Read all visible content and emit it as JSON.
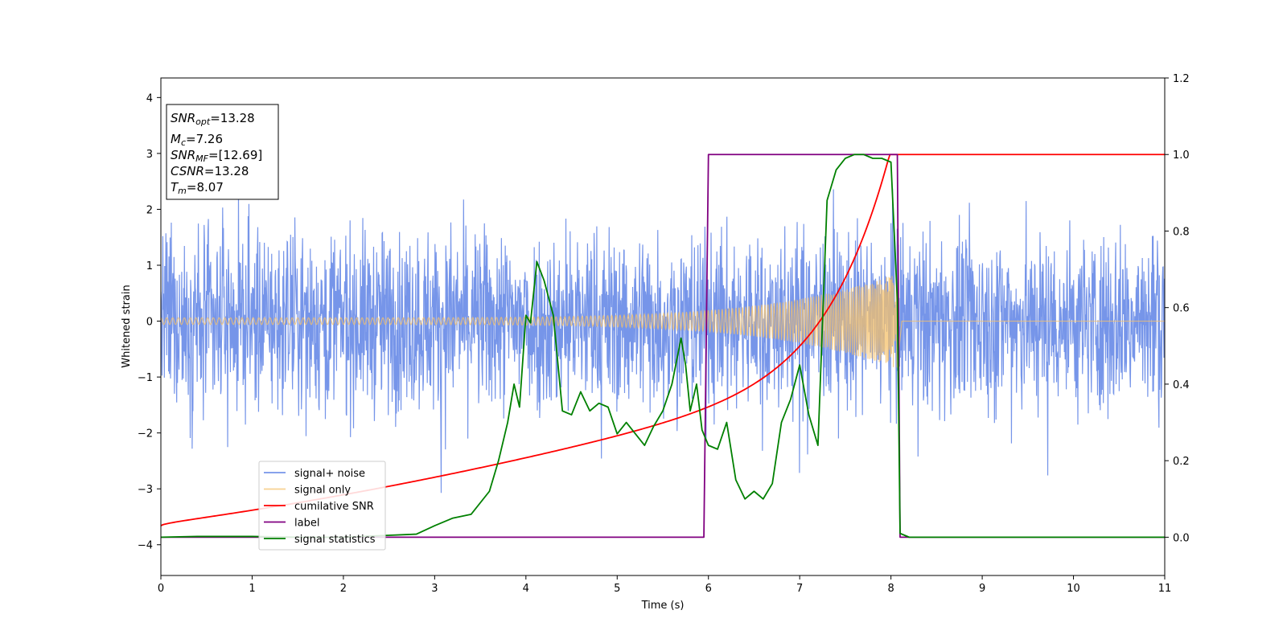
{
  "chart_data": {
    "type": "line",
    "xlabel": "Time (s)",
    "ylabel": "Whitened strain",
    "xlim": [
      0,
      11
    ],
    "ylim_left": [
      -4.55,
      4.35
    ],
    "ylim_right": [
      -0.1,
      1.2
    ],
    "xticks": [
      0,
      1,
      2,
      3,
      4,
      5,
      6,
      7,
      8,
      9,
      10,
      11
    ],
    "yticks_left": [
      -4,
      -3,
      -2,
      -1,
      0,
      1,
      2,
      3,
      4
    ],
    "yticks_right": [
      "0.0",
      "0.2",
      "0.4",
      "0.6",
      "0.8",
      "1.0",
      "1.2"
    ],
    "grid": false,
    "legend_position": "lower-left",
    "colors": {
      "signal_noise": "#6f8fe8",
      "signal_only": "#f5c26b",
      "cumulative_snr": "#ff0000",
      "label": "#800080",
      "signal_statistics": "#008000"
    },
    "annotation": {
      "snr_opt": {
        "base": "SNR",
        "sub": "opt",
        "value": "=13.28"
      },
      "mc": {
        "base": "M",
        "sub": "c",
        "value": "=7.26"
      },
      "snr_mf": {
        "base": "SNR",
        "sub": "MF",
        "value": "=[12.69]"
      },
      "csnr": {
        "base": "CSNR",
        "value": "=13.28"
      },
      "tm": {
        "base": "T",
        "sub": "m",
        "value": "=8.07"
      }
    },
    "series": [
      {
        "name": "signal+ noise",
        "axis": "left",
        "description_values": {
          "noise_amplitude_approx": 2.2,
          "x_range": [
            0,
            11
          ]
        }
      },
      {
        "name": "signal only",
        "axis": "left",
        "chirp": {
          "start": 0,
          "merger": 8.07,
          "amp_start": 0.06,
          "amp_merger": 0.85
        }
      },
      {
        "name": "cumilative SNR",
        "axis": "right",
        "x": [
          0,
          0.5,
          1,
          2,
          3,
          4,
          5,
          5.5,
          6,
          6.5,
          7,
          7.3,
          7.6,
          7.8,
          7.95,
          8.07,
          8.1,
          11
        ],
        "y": [
          0.03,
          0.07,
          0.09,
          0.14,
          0.19,
          0.24,
          0.29,
          0.33,
          0.37,
          0.42,
          0.5,
          0.56,
          0.66,
          0.76,
          0.86,
          0.96,
          1.0,
          1.0
        ]
      },
      {
        "name": "label",
        "axis": "right",
        "x": [
          0,
          5.95,
          6.0,
          8.07,
          8.1,
          11
        ],
        "y": [
          0,
          0,
          1,
          1,
          0,
          0
        ]
      },
      {
        "name": "signal statistics",
        "axis": "right",
        "x": [
          0,
          0.4,
          1.0,
          1.5,
          2.0,
          2.5,
          2.8,
          3.0,
          3.2,
          3.4,
          3.6,
          3.7,
          3.8,
          3.87,
          3.93,
          4.0,
          4.05,
          4.12,
          4.2,
          4.3,
          4.4,
          4.5,
          4.6,
          4.7,
          4.8,
          4.9,
          5.0,
          5.1,
          5.2,
          5.3,
          5.4,
          5.5,
          5.6,
          5.7,
          5.75,
          5.8,
          5.87,
          5.93,
          6.0,
          6.1,
          6.2,
          6.3,
          6.4,
          6.5,
          6.6,
          6.7,
          6.8,
          6.9,
          7.0,
          7.1,
          7.2,
          7.3,
          7.4,
          7.5,
          7.6,
          7.7,
          7.8,
          7.9,
          8.0,
          8.07,
          8.1,
          8.2,
          11
        ],
        "y": [
          0,
          0.002,
          0.002,
          0,
          0,
          0.005,
          0.008,
          0.03,
          0.05,
          0.06,
          0.12,
          0.2,
          0.3,
          0.4,
          0.34,
          0.58,
          0.56,
          0.72,
          0.67,
          0.58,
          0.33,
          0.32,
          0.38,
          0.33,
          0.35,
          0.34,
          0.27,
          0.3,
          0.27,
          0.24,
          0.29,
          0.33,
          0.4,
          0.52,
          0.45,
          0.33,
          0.4,
          0.28,
          0.24,
          0.23,
          0.3,
          0.15,
          0.1,
          0.12,
          0.1,
          0.14,
          0.3,
          0.36,
          0.45,
          0.32,
          0.24,
          0.88,
          0.96,
          0.99,
          1.0,
          1.0,
          0.99,
          0.99,
          0.98,
          0.62,
          0.01,
          0,
          0
        ]
      }
    ]
  }
}
